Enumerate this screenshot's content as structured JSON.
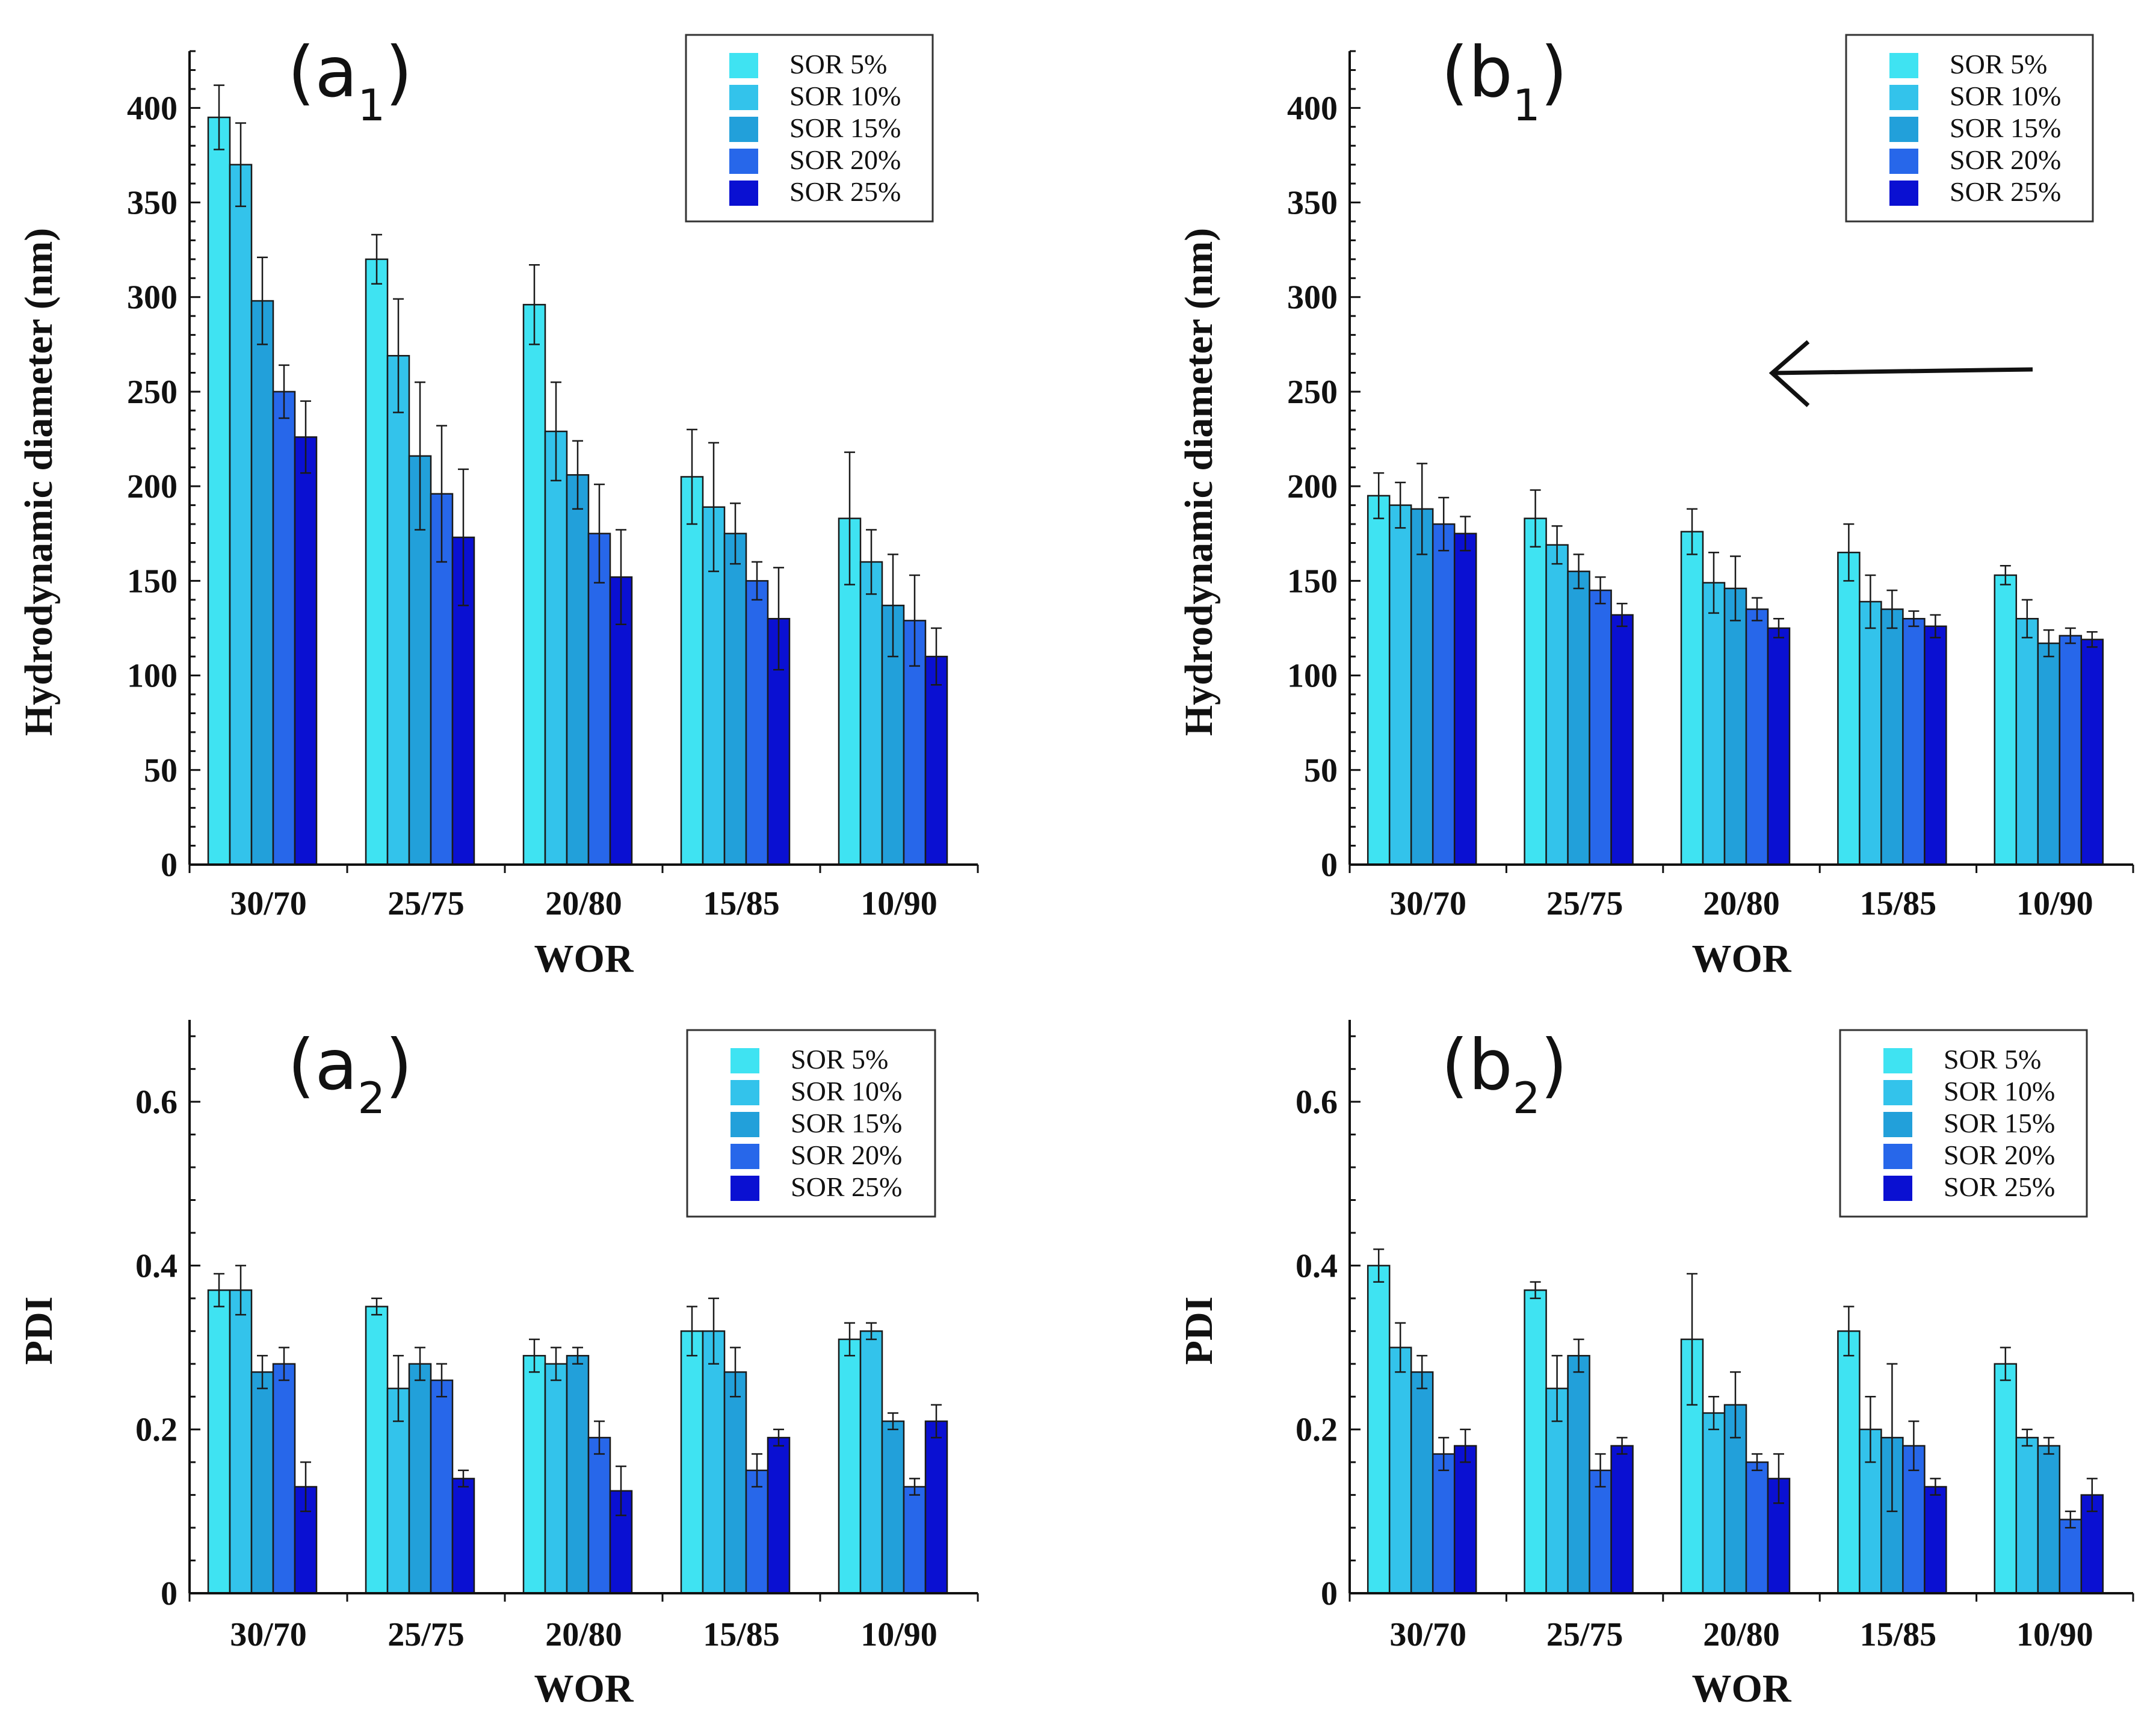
{
  "figure": {
    "description_domain": "bar charts of droplet size and PDI"
  },
  "chart_data": [
    {
      "id": "a1",
      "type": "bar",
      "title_main": "(a",
      "title_sub": "1",
      "title_close": ")",
      "xlabel": "WOR",
      "ylabel": "Hydrodynamic diameter  (nm)",
      "categories": [
        "30/70",
        "25/75",
        "20/80",
        "15/85",
        "10/90"
      ],
      "yticks": [
        "0",
        "50",
        "100",
        "150",
        "200",
        "250",
        "300",
        "350",
        "400"
      ],
      "tick_values": [
        0,
        50,
        100,
        150,
        200,
        250,
        300,
        350,
        400
      ],
      "ylim": [
        0,
        430
      ],
      "grid": false,
      "legend_position": "top-right",
      "series": [
        {
          "name": "SOR 5%",
          "color": "#3fe3f2",
          "values": [
            395,
            320,
            296,
            205,
            183
          ],
          "errors": [
            17,
            13,
            21,
            25,
            35
          ]
        },
        {
          "name": "SOR 10%",
          "color": "#33c3eb",
          "values": [
            370,
            269,
            229,
            189,
            160
          ],
          "errors": [
            22,
            30,
            26,
            34,
            17
          ]
        },
        {
          "name": "SOR 15%",
          "color": "#22a0da",
          "values": [
            298,
            216,
            206,
            175,
            137
          ],
          "errors": [
            23,
            39,
            18,
            16,
            27
          ]
        },
        {
          "name": "SOR 20%",
          "color": "#2767ea",
          "values": [
            250,
            196,
            175,
            150,
            129
          ],
          "errors": [
            14,
            36,
            26,
            10,
            24
          ]
        },
        {
          "name": "SOR 25%",
          "color": "#0a10d2",
          "values": [
            226,
            173,
            152,
            130,
            110
          ],
          "errors": [
            19,
            36,
            25,
            27,
            15
          ]
        }
      ]
    },
    {
      "id": "b1",
      "type": "bar",
      "title_main": "(b",
      "title_sub": "1",
      "title_close": ")",
      "xlabel": "WOR",
      "ylabel": "Hydrodynamic diameter  (nm)",
      "categories": [
        "30/70",
        "25/75",
        "20/80",
        "15/85",
        "10/90"
      ],
      "yticks": [
        "0",
        "50",
        "100",
        "150",
        "200",
        "250",
        "300",
        "350",
        "400"
      ],
      "tick_values": [
        0,
        50,
        100,
        150,
        200,
        250,
        300,
        350,
        400
      ],
      "ylim": [
        0,
        430
      ],
      "grid": false,
      "legend_position": "top-right",
      "annotation": "left-pointing arrow",
      "series": [
        {
          "name": "SOR 5%",
          "color": "#3fe3f2",
          "values": [
            195,
            183,
            176,
            165,
            153
          ],
          "errors": [
            12,
            15,
            12,
            15,
            5
          ]
        },
        {
          "name": "SOR 10%",
          "color": "#33c3eb",
          "values": [
            190,
            169,
            149,
            139,
            130
          ],
          "errors": [
            12,
            10,
            16,
            14,
            10
          ]
        },
        {
          "name": "SOR 15%",
          "color": "#22a0da",
          "values": [
            188,
            155,
            146,
            135,
            117
          ],
          "errors": [
            24,
            9,
            17,
            10,
            7
          ]
        },
        {
          "name": "SOR 20%",
          "color": "#2767ea",
          "values": [
            180,
            145,
            135,
            130,
            121
          ],
          "errors": [
            14,
            7,
            6,
            4,
            4
          ]
        },
        {
          "name": "SOR 25%",
          "color": "#0a10d2",
          "values": [
            175,
            132,
            125,
            126,
            119
          ],
          "errors": [
            9,
            6,
            5,
            6,
            4
          ]
        }
      ]
    },
    {
      "id": "a2",
      "type": "bar",
      "title_main": "(a",
      "title_sub": "2",
      "title_close": ")",
      "xlabel": "WOR",
      "ylabel": "PDI",
      "categories": [
        "30/70",
        "25/75",
        "20/80",
        "15/85",
        "10/90"
      ],
      "yticks": [
        "0",
        "0.2",
        "0.4",
        "0.6"
      ],
      "tick_values": [
        0,
        0.2,
        0.4,
        0.6
      ],
      "ylim": [
        0,
        0.7
      ],
      "grid": false,
      "legend_position": "top-right",
      "series": [
        {
          "name": "SOR 5%",
          "color": "#3fe3f2",
          "values": [
            0.37,
            0.35,
            0.29,
            0.32,
            0.31
          ],
          "errors": [
            0.02,
            0.01,
            0.02,
            0.03,
            0.02
          ]
        },
        {
          "name": "SOR 10%",
          "color": "#33c3eb",
          "values": [
            0.37,
            0.25,
            0.28,
            0.32,
            0.32
          ],
          "errors": [
            0.03,
            0.04,
            0.02,
            0.04,
            0.01
          ]
        },
        {
          "name": "SOR 15%",
          "color": "#22a0da",
          "values": [
            0.27,
            0.28,
            0.29,
            0.27,
            0.21
          ],
          "errors": [
            0.02,
            0.02,
            0.01,
            0.03,
            0.01
          ]
        },
        {
          "name": "SOR 20%",
          "color": "#2767ea",
          "values": [
            0.28,
            0.26,
            0.19,
            0.15,
            0.13
          ],
          "errors": [
            0.02,
            0.02,
            0.02,
            0.02,
            0.01
          ]
        },
        {
          "name": "SOR 25%",
          "color": "#0a10d2",
          "values": [
            0.13,
            0.14,
            0.125,
            0.19,
            0.21
          ],
          "errors": [
            0.03,
            0.01,
            0.03,
            0.01,
            0.02
          ]
        }
      ]
    },
    {
      "id": "b2",
      "type": "bar",
      "title_main": "(b",
      "title_sub": "2",
      "title_close": ")",
      "xlabel": "WOR",
      "ylabel": "PDI",
      "categories": [
        "30/70",
        "25/75",
        "20/80",
        "15/85",
        "10/90"
      ],
      "yticks": [
        "0",
        "0.2",
        "0.4",
        "0.6"
      ],
      "tick_values": [
        0,
        0.2,
        0.4,
        0.6
      ],
      "ylim": [
        0,
        0.7
      ],
      "grid": false,
      "legend_position": "top-right",
      "series": [
        {
          "name": "SOR 5%",
          "color": "#3fe3f2",
          "values": [
            0.4,
            0.37,
            0.31,
            0.32,
            0.28
          ],
          "errors": [
            0.02,
            0.01,
            0.08,
            0.03,
            0.02
          ]
        },
        {
          "name": "SOR 10%",
          "color": "#33c3eb",
          "values": [
            0.3,
            0.25,
            0.22,
            0.2,
            0.19
          ],
          "errors": [
            0.03,
            0.04,
            0.02,
            0.04,
            0.01
          ]
        },
        {
          "name": "SOR 15%",
          "color": "#22a0da",
          "values": [
            0.27,
            0.29,
            0.23,
            0.19,
            0.18
          ],
          "errors": [
            0.02,
            0.02,
            0.04,
            0.09,
            0.01
          ]
        },
        {
          "name": "SOR 20%",
          "color": "#2767ea",
          "values": [
            0.17,
            0.15,
            0.16,
            0.18,
            0.09
          ],
          "errors": [
            0.02,
            0.02,
            0.01,
            0.03,
            0.01
          ]
        },
        {
          "name": "SOR 25%",
          "color": "#0a10d2",
          "values": [
            0.18,
            0.18,
            0.14,
            0.13,
            0.12
          ],
          "errors": [
            0.02,
            0.01,
            0.03,
            0.01,
            0.02
          ]
        }
      ]
    }
  ]
}
